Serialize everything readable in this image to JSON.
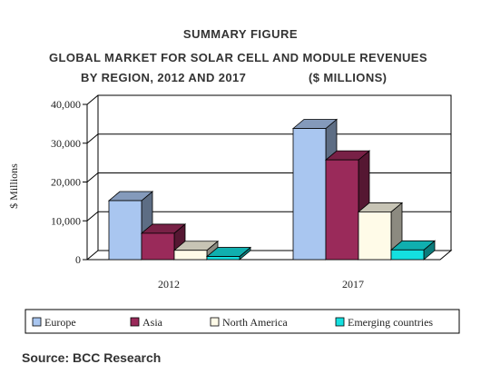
{
  "heading": {
    "line1": "SUMMARY FIGURE",
    "line2": "GLOBAL MARKET FOR SOLAR CELL AND MODULE REVENUES",
    "line3": "BY REGION, 2012 AND 2017",
    "line3b": "($ MILLIONS)"
  },
  "source": "Source: BCC Research",
  "chart_data": {
    "type": "bar",
    "categories": [
      "2012",
      "2017"
    ],
    "series": [
      {
        "name": "Europe",
        "values": [
          15200,
          33800
        ],
        "color": "#a9c6f0"
      },
      {
        "name": "Asia",
        "values": [
          6800,
          25700
        ],
        "color": "#9a2a5a"
      },
      {
        "name": "North America",
        "values": [
          2400,
          12300
        ],
        "color": "#fffbe8"
      },
      {
        "name": "Emerging countries",
        "values": [
          800,
          2500
        ],
        "color": "#14e0e0"
      }
    ],
    "ylabel": "$ Millions",
    "ylim": [
      0,
      40000
    ],
    "yticks": [
      "0",
      "10,000",
      "20,000",
      "30,000",
      "40,000"
    ],
    "grid": true,
    "legend_position": "bottom"
  }
}
